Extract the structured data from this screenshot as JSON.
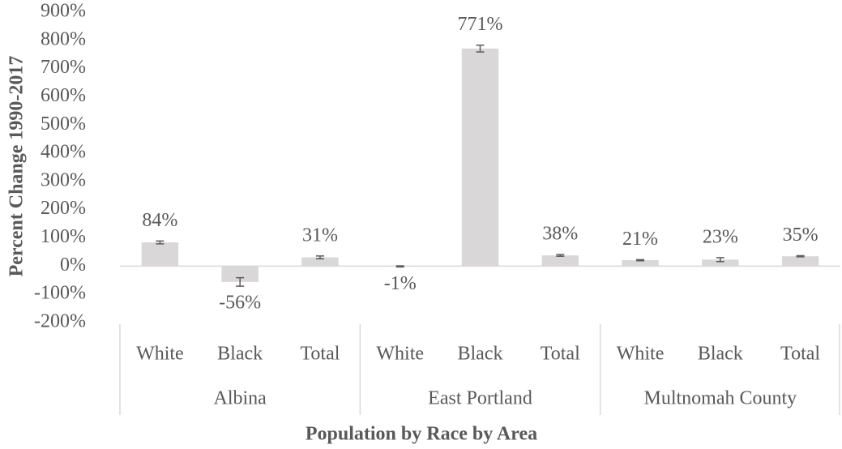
{
  "chart_data": {
    "type": "bar",
    "y_axis_label": "Percent Change 1990-2017",
    "x_axis_label": "Population by Race by Area",
    "groups": [
      {
        "name": "Albina",
        "categories": [
          "White",
          "Black",
          "Total"
        ]
      },
      {
        "name": "East Portland",
        "categories": [
          "White",
          "Black",
          "Total"
        ]
      },
      {
        "name": "Multnomah County",
        "categories": [
          "White",
          "Black",
          "Total"
        ]
      }
    ],
    "values": [
      84,
      -56,
      31,
      -1,
      771,
      38,
      21,
      23,
      35
    ],
    "value_labels": [
      "84%",
      "-56%",
      "31%",
      "-1%",
      "771%",
      "38%",
      "21%",
      "23%",
      "35%"
    ],
    "errors": [
      5,
      15,
      5,
      2,
      12,
      3,
      2,
      7,
      2
    ],
    "color": "#d9d7d7",
    "error_color": "#5a5a5a",
    "ylim": [
      -200,
      900
    ],
    "yticks": [
      {
        "value": -200,
        "label": "-200%"
      },
      {
        "value": -100,
        "label": "-100%"
      },
      {
        "value": 0,
        "label": "0%"
      },
      {
        "value": 100,
        "label": "100%"
      },
      {
        "value": 200,
        "label": "200%"
      },
      {
        "value": 300,
        "label": "300%"
      },
      {
        "value": 400,
        "label": "400%"
      },
      {
        "value": 500,
        "label": "500%"
      },
      {
        "value": 600,
        "label": "600%"
      },
      {
        "value": 700,
        "label": "700%"
      },
      {
        "value": 800,
        "label": "800%"
      },
      {
        "value": 900,
        "label": "900%"
      }
    ],
    "grid": false
  }
}
